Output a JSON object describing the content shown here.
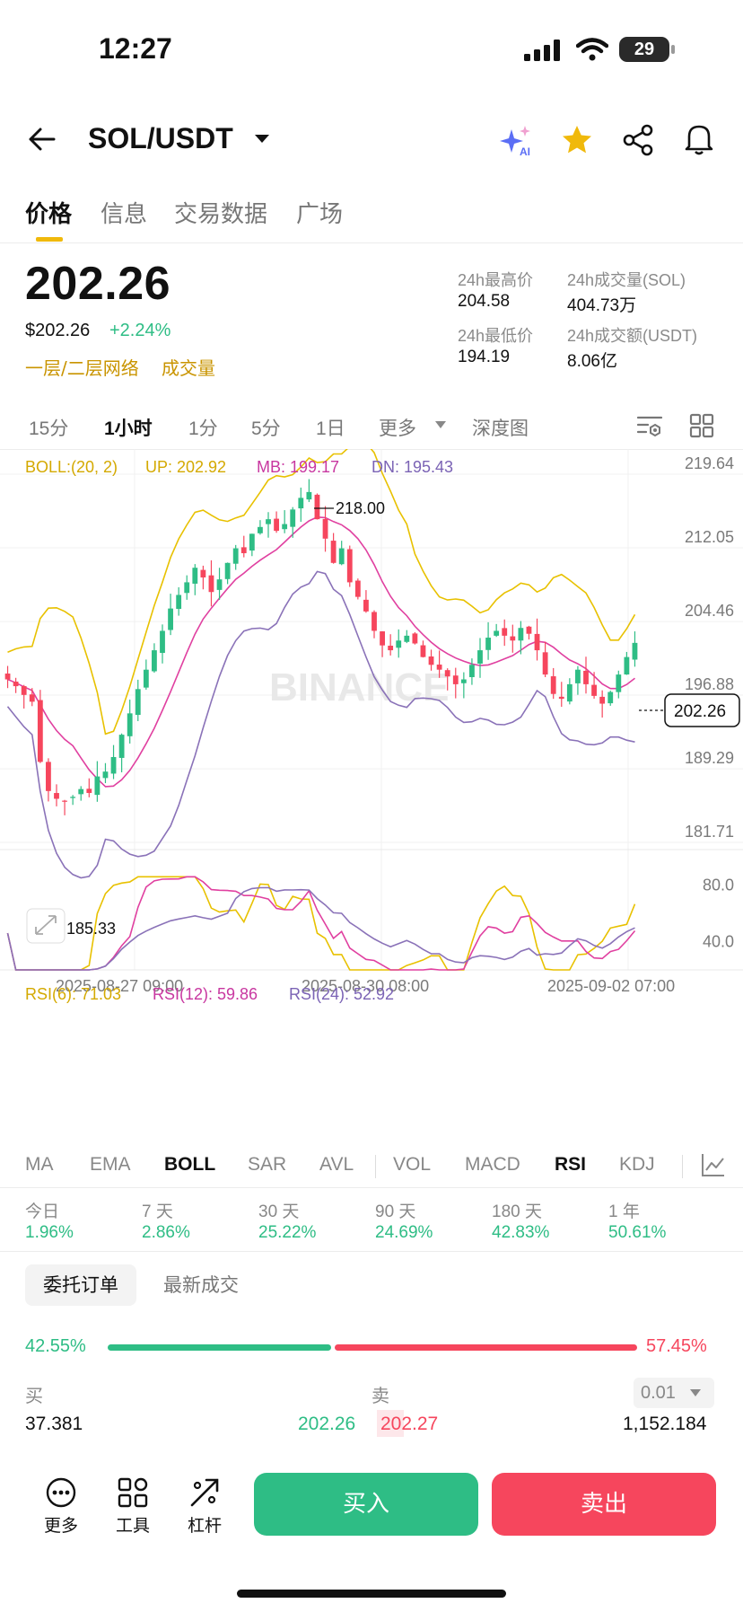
{
  "status_bar": {
    "time": "12:27",
    "battery": "29"
  },
  "header": {
    "pair": "SOL/USDT",
    "icons": [
      "back-arrow-icon",
      "dropdown-caret-icon",
      "ai-sparkle-icon",
      "star-icon",
      "share-icon",
      "bell-icon"
    ],
    "ai_badge": "AI"
  },
  "tabs": [
    "价格",
    "信息",
    "交易数据",
    "广场"
  ],
  "price": {
    "last": "202.26",
    "usd": "$202.26",
    "change": "+2.24%",
    "tags": [
      "一层/二层网络",
      "成交量"
    ]
  },
  "stats": {
    "high_label": "24h最高价",
    "high": "204.58",
    "low_label": "24h最低价",
    "low": "194.19",
    "vol_base_label": "24h成交量(SOL)",
    "vol_base": "404.73万",
    "vol_quote_label": "24h成交额(USDT)",
    "vol_quote": "8.06亿"
  },
  "timeframes": {
    "items": [
      "15分",
      "1小时",
      "1分",
      "5分",
      "1日",
      "更多",
      "深度图"
    ],
    "active": "1小时"
  },
  "boll_legend": {
    "name": "BOLL:(20, 2)",
    "up": "UP: 202.92",
    "mb": "MB: 199.17",
    "dn": "DN: 195.43"
  },
  "rsi_legend": {
    "r6": "RSI(6): 71.03",
    "r12": "RSI(12): 59.86",
    "r24": "RSI(24): 52.92"
  },
  "price_axis": [
    "219.64",
    "212.05",
    "204.46",
    "196.88",
    "189.29",
    "181.71"
  ],
  "rsi_axis": [
    "80.0",
    "40.0"
  ],
  "time_axis": [
    "2025-08-27 09:00",
    "2025-08-30 08:00",
    "2025-09-02 07:00"
  ],
  "annotations": {
    "high": "218.00",
    "low": "185.33",
    "current": "202.26"
  },
  "watermark": "BINANCE",
  "colors": {
    "up": "#2ebd85",
    "down": "#f6465d",
    "boll_up": "#e8c100",
    "boll_mb": "#e040a0",
    "boll_dn": "#8a72b8",
    "accent": "#f0b90b"
  },
  "chart_data": {
    "type": "candlestick",
    "interval": "1h",
    "ylim": [
      181.71,
      219.64
    ],
    "note_visible": {
      "high_marker": 218.0,
      "low_marker": 185.33,
      "last": 202.26
    },
    "boll_last": {
      "up": 202.92,
      "mb": 199.17,
      "dn": 195.43
    },
    "close_path": [
      198.5,
      197.8,
      196.9,
      196.2,
      190.0,
      187.0,
      186.2,
      186.0,
      186.4,
      187.2,
      186.8,
      188.5,
      189.0,
      190.5,
      192.8,
      195.0,
      197.5,
      199.5,
      201.5,
      203.5,
      205.8,
      207.2,
      208.5,
      210.0,
      209.0,
      207.5,
      208.8,
      210.5,
      212.0,
      211.5,
      213.5,
      214.2,
      215.0,
      213.8,
      214.5,
      216.0,
      217.2,
      217.8,
      215.0,
      213.0,
      210.5,
      212.0,
      208.5,
      207.0,
      205.5,
      203.5,
      202.0,
      201.5,
      202.5,
      203.0,
      202.2,
      200.8,
      200.0,
      199.5,
      198.8,
      198.0,
      198.5,
      200.0,
      201.5,
      202.8,
      203.5,
      203.0,
      202.5,
      203.8,
      203.2,
      201.5,
      199.0,
      197.0,
      196.5,
      198.0,
      199.5,
      198.0,
      196.8,
      196.0,
      197.2,
      199.0,
      200.8,
      202.26
    ],
    "rsi6_last": 71.03,
    "rsi12_last": 59.86,
    "rsi24_last": 52.92,
    "rsi_ylim": [
      20,
      90
    ],
    "x_ticks": [
      "2025-08-27 09:00",
      "2025-08-30 08:00",
      "2025-09-02 07:00"
    ]
  },
  "indicators": {
    "items": [
      "MA",
      "EMA",
      "BOLL",
      "SAR",
      "AVL",
      "VOL",
      "MACD",
      "RSI",
      "KDJ"
    ],
    "active": [
      "BOLL",
      "RSI"
    ]
  },
  "performance": [
    {
      "label": "今日",
      "value": "1.96%"
    },
    {
      "label": "7 天",
      "value": "2.86%"
    },
    {
      "label": "30 天",
      "value": "25.22%"
    },
    {
      "label": "90 天",
      "value": "24.69%"
    },
    {
      "label": "180 天",
      "value": "42.83%"
    },
    {
      "label": "1 年",
      "value": "50.61%"
    }
  ],
  "orderbook": {
    "tabs": [
      "委托订单",
      "最新成交"
    ],
    "buy_ratio": "42.55%",
    "sell_ratio": "57.45%",
    "buy_ratio_value": 0.4255,
    "bid_label": "买",
    "ask_label": "卖",
    "precision": "0.01",
    "rows": [
      {
        "bid_qty": "37.381",
        "bid_price": "202.26",
        "ask_price": "202.27",
        "ask_qty": "1,152.184"
      }
    ]
  },
  "bottom_bar": {
    "tools": [
      "更多",
      "工具",
      "杠杆"
    ],
    "buy": "买入",
    "sell": "卖出"
  }
}
